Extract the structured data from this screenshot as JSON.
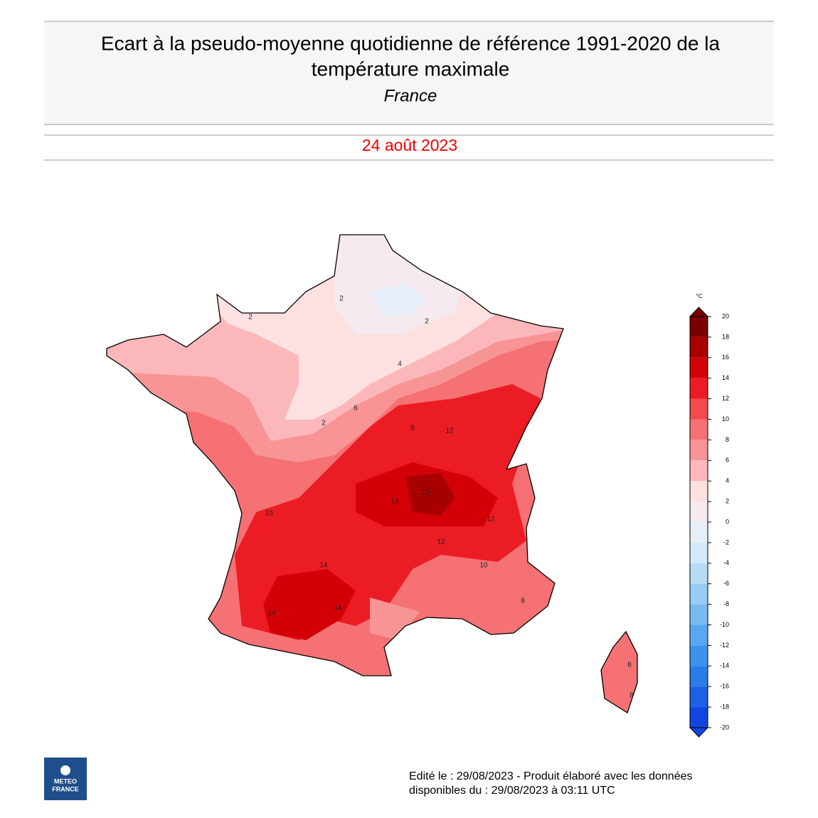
{
  "header": {
    "title_lines": [
      "Ecart à la pseudo-moyenne quotidienne de référence 1991-2020 de la",
      "température maximale"
    ],
    "region": "France",
    "date": "24 août 2023"
  },
  "map": {
    "contour_labels": [
      2,
      2,
      2,
      2,
      4,
      6,
      8,
      10,
      12,
      12,
      14,
      14,
      14,
      14,
      12,
      10,
      12,
      8,
      8,
      8
    ]
  },
  "colorbar": {
    "unit": "°C",
    "ticks": [
      20,
      18,
      16,
      14,
      12,
      10,
      8,
      6,
      4,
      2,
      0,
      -2,
      -4,
      -6,
      -8,
      -10,
      -12,
      -14,
      -16,
      -18,
      -20
    ],
    "colors": [
      "#7a0000",
      "#a80000",
      "#d40008",
      "#ec1c24",
      "#f24a4d",
      "#f57173",
      "#f89496",
      "#fbb7b9",
      "#fde0e0",
      "#f4eaf0",
      "#e6eef7",
      "#d3e9f8",
      "#b6dcf6",
      "#97ccf4",
      "#78bbf2",
      "#59a8ef",
      "#3c92ec",
      "#2b7be9",
      "#1c61e5",
      "#0f45e0"
    ]
  },
  "logo": {
    "lines": [
      "METEO",
      "FRANCE"
    ]
  },
  "footer": {
    "lines": [
      "Edité le : 29/08/2023 - Produit élaboré avec les données",
      "disponibles du : 29/08/2023 à 03:11 UTC"
    ]
  }
}
